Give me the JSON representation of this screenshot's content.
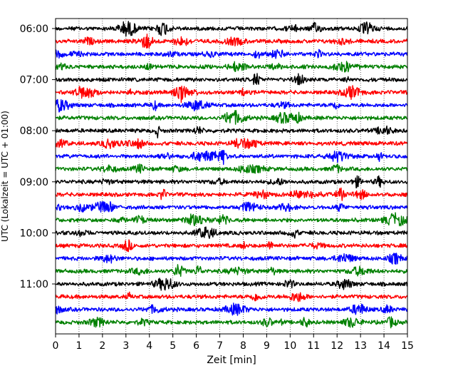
{
  "chart_data": {
    "type": "line",
    "title": "",
    "xlabel": "Zeit  [min]",
    "ylabel": "UTC (Lokalzeit = UTC + 01:00)",
    "xlim": [
      0,
      15
    ],
    "x_ticks": [
      "0",
      "1",
      "2",
      "3",
      "4",
      "5",
      "6",
      "7",
      "8",
      "9",
      "10",
      "11",
      "12",
      "13",
      "14",
      "15"
    ],
    "y_ticks": [
      "06:00",
      "07:00",
      "08:00",
      "09:00",
      "10:00",
      "11:00"
    ],
    "rows_per_hour": 4,
    "row_minutes": 15,
    "row_count": 24,
    "color_cycle": [
      "#000000",
      "#ff0000",
      "#0000ff",
      "#008000"
    ],
    "grid": {
      "vertical": true,
      "style": "dotted"
    },
    "legend": "none"
  }
}
